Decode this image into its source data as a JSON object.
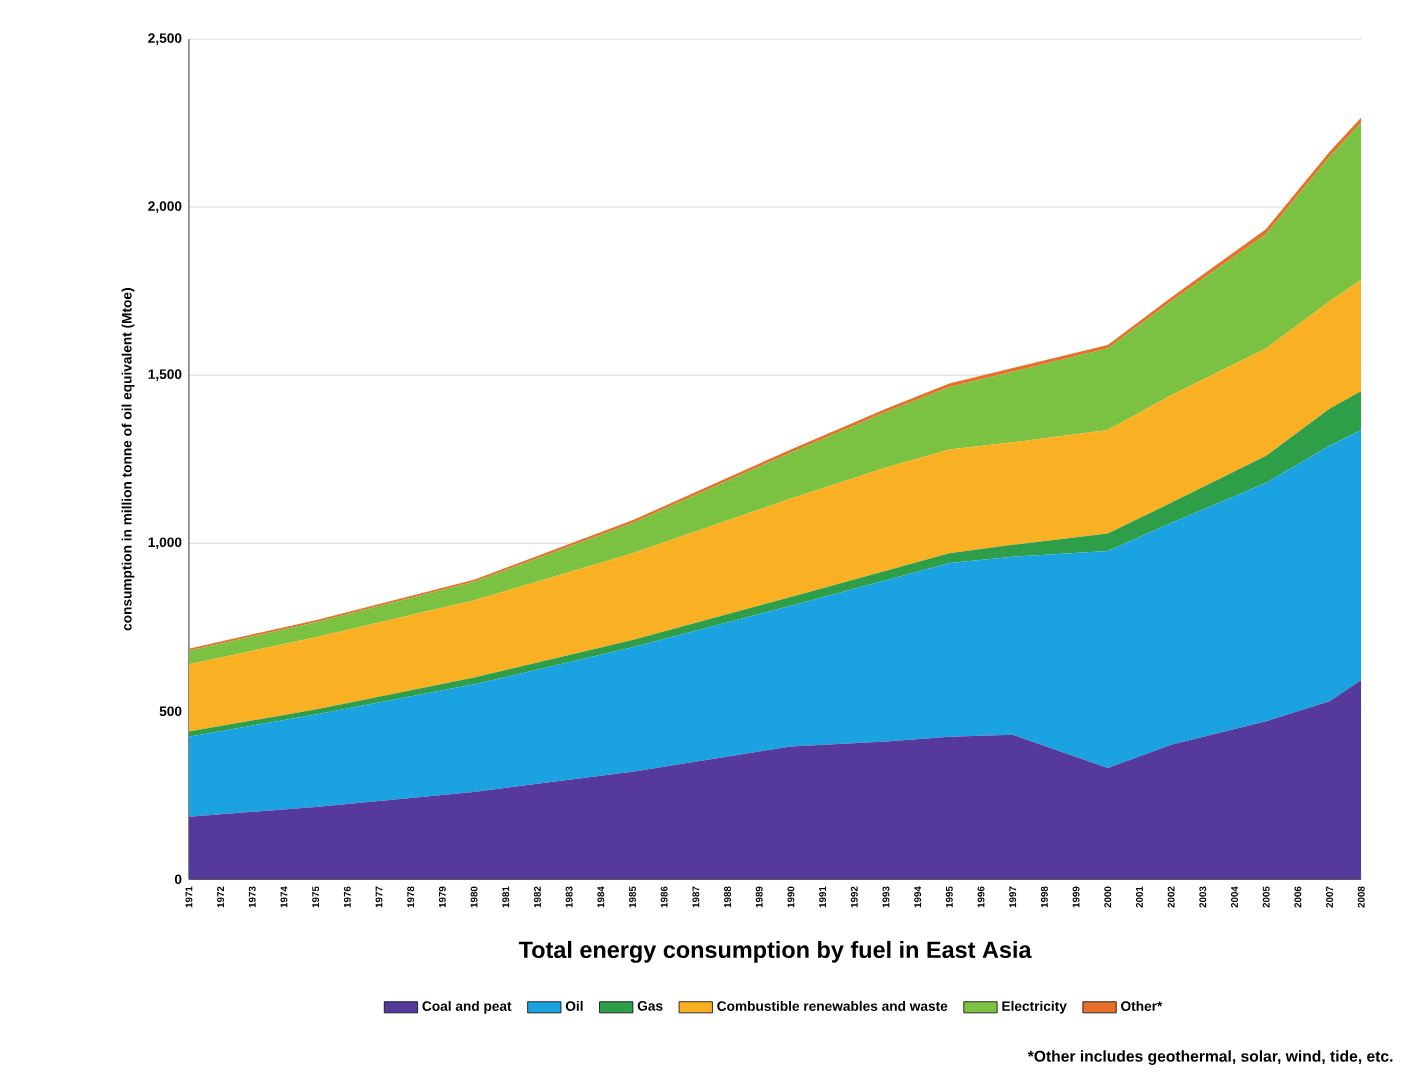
{
  "chart_data": {
    "type": "area",
    "title": "Total energy consumption by fuel in East Asia",
    "ylabel": "consumption in million tonne of oil equivalent (Mtoe)",
    "annotations": [
      "*Other includes geothermal, solar, wind, tide, etc."
    ],
    "stacked": true,
    "grid": "y",
    "legend": "bottom",
    "x": [
      1971,
      1975,
      1980,
      1985,
      1990,
      1993,
      1995,
      1997,
      2000,
      2002,
      2005,
      2007,
      2008
    ],
    "series": [
      {
        "name": "Coal and peat",
        "color": "#553a9c",
        "values": [
          186,
          215,
          260,
          320,
          395,
          410,
          424,
          430,
          331,
          400,
          470,
          530,
          593
        ]
      },
      {
        "name": "Oil",
        "color": "#1aa3e0",
        "values": [
          238,
          275,
          320,
          370,
          419,
          480,
          517,
          530,
          646,
          660,
          710,
          760,
          744
        ]
      },
      {
        "name": "Gas",
        "color": "#2e9e48",
        "values": [
          16,
          15,
          20,
          22,
          26,
          28,
          29,
          35,
          52,
          60,
          80,
          110,
          116
        ]
      },
      {
        "name": "Combustible renewables and waste",
        "color": "#f9b022",
        "values": [
          200,
          215,
          230,
          258,
          293,
          307,
          309,
          305,
          308,
          320,
          320,
          320,
          331
        ]
      },
      {
        "name": "Electricity",
        "color": "#7cc242",
        "values": [
          40,
          45,
          55,
          90,
          137,
          165,
          186,
          210,
          243,
          280,
          340,
          430,
          468
        ]
      },
      {
        "name": "Other*",
        "color": "#e8702a",
        "values": [
          6,
          6,
          6,
          8,
          9,
          10,
          10,
          11,
          10,
          11,
          15,
          15,
          15
        ]
      }
    ],
    "xlim": [
      1971,
      2008
    ],
    "xticks": [
      1971,
      1972,
      1973,
      1974,
      1975,
      1976,
      1977,
      1978,
      1979,
      1980,
      1981,
      1982,
      1983,
      1984,
      1985,
      1986,
      1987,
      1988,
      1989,
      1990,
      1991,
      1992,
      1993,
      1994,
      1995,
      1996,
      1997,
      1998,
      1999,
      2000,
      2001,
      2002,
      2003,
      2004,
      2005,
      2006,
      2007,
      2008
    ],
    "ylim": [
      0,
      2500
    ],
    "yticks": [
      0,
      {
        "value": 500,
        "label": "500"
      },
      {
        "value": 1000,
        "label": "1,000"
      },
      {
        "value": 1500,
        "label": "1,500"
      },
      {
        "value": 2000,
        "label": "2,000"
      },
      {
        "value": 2500,
        "label": "2,500"
      }
    ]
  }
}
